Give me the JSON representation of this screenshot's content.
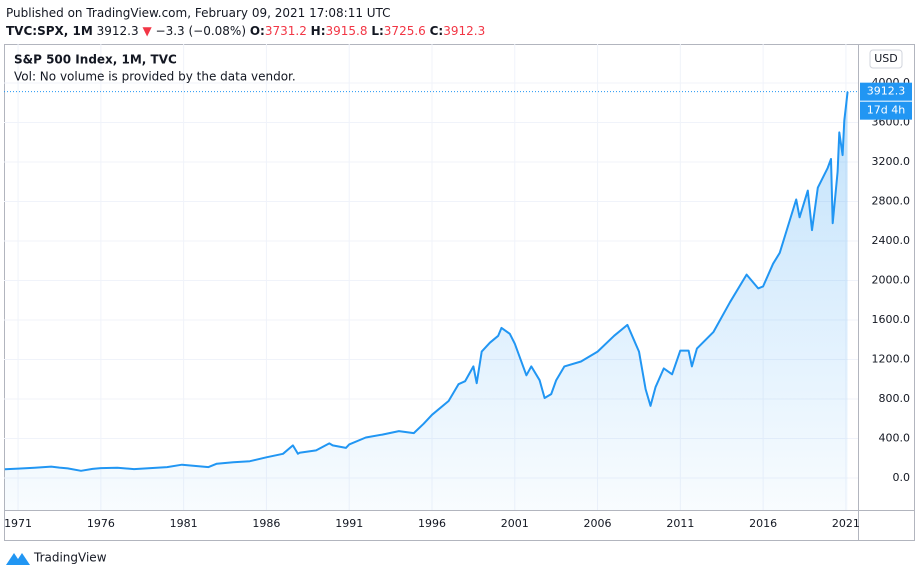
{
  "header": {
    "published": "Published on TradingView.com, February 09, 2021 17:08:11 UTC",
    "symbol": "TVC:SPX, 1M",
    "last": "3912.3",
    "arrow": "▼",
    "change": "−3.3 (−0.08%)",
    "o_label": "O:",
    "o": "3731.2",
    "h_label": "H:",
    "h": "3915.8",
    "l_label": "L:",
    "l": "3725.6",
    "c_label": "C:",
    "c": "3912.3"
  },
  "footer": {
    "brand": "TradingView"
  },
  "chart_data": {
    "type": "area",
    "title": "S&P 500 Index, 1M, TVC",
    "annotation": "Vol: No volume is provided by the data vendor.",
    "currency": "USD",
    "countdown": "17d 4h",
    "x": [
      1970.2,
      1971,
      1972,
      1973,
      1973.5,
      1974,
      1974.8,
      1975.5,
      1976,
      1977,
      1978,
      1979,
      1980,
      1980.9,
      1982.5,
      1983,
      1984,
      1985,
      1986,
      1987,
      1987.6,
      1987.9,
      1988,
      1989,
      1989.8,
      1990,
      1990.8,
      1991,
      1992,
      1993,
      1994,
      1994.9,
      1995.5,
      1996,
      1997,
      1997.6,
      1998,
      1998.5,
      1998.7,
      1999,
      1999.5,
      2000,
      2000.2,
      2000.7,
      2001,
      2001.7,
      2002,
      2002.5,
      2002.8,
      2003.2,
      2003.5,
      2004,
      2005,
      2006,
      2007,
      2007.8,
      2008.5,
      2008.9,
      2009.2,
      2009.5,
      2010,
      2010.5,
      2011,
      2011.5,
      2011.7,
      2012,
      2013,
      2014,
      2015,
      2015.7,
      2016,
      2016.6,
      2017,
      2018,
      2018.2,
      2018.7,
      2018.95,
      2019.3,
      2019.9,
      2020.1,
      2020.2,
      2020.5,
      2020.6,
      2020.8,
      2020.9,
      2021,
      2021.1
    ],
    "series": [
      {
        "name": "S&P 500 Index",
        "color": "#2196f3",
        "values": [
          89,
          95,
          104,
          116,
          105,
          97,
          73,
          92,
          100,
          104,
          90,
          100,
          110,
          135,
          110,
          145,
          160,
          170,
          210,
          245,
          330,
          245,
          255,
          280,
          350,
          330,
          305,
          340,
          410,
          440,
          475,
          455,
          550,
          640,
          780,
          950,
          980,
          1130,
          960,
          1280,
          1370,
          1440,
          1520,
          1460,
          1360,
          1040,
          1130,
          990,
          810,
          850,
          990,
          1130,
          1180,
          1280,
          1440,
          1550,
          1280,
          900,
          730,
          920,
          1110,
          1050,
          1290,
          1290,
          1130,
          1310,
          1480,
          1780,
          2060,
          1920,
          1940,
          2170,
          2280,
          2820,
          2640,
          2910,
          2510,
          2940,
          3140,
          3230,
          2580,
          3100,
          3500,
          3270,
          3620,
          3760,
          3912.3
        ]
      }
    ],
    "xlim": [
      1970.15,
      2021.73
    ],
    "ylim": [
      -324,
      4395
    ],
    "xticks": [
      1971,
      1976,
      1981,
      1986,
      1991,
      1996,
      2001,
      2006,
      2011,
      2016,
      2021
    ],
    "yticks": [
      {
        "value": 0,
        "label": "0.0"
      },
      {
        "value": 400,
        "label": "400.0"
      },
      {
        "value": 800,
        "label": "800.0"
      },
      {
        "value": 1200,
        "label": "1200.0"
      },
      {
        "value": 1600,
        "label": "1600.0"
      },
      {
        "value": 2000,
        "label": "2000.0"
      },
      {
        "value": 2400,
        "label": "2400.0"
      },
      {
        "value": 2800,
        "label": "2800.0"
      },
      {
        "value": 3200,
        "label": "3200.0"
      },
      {
        "value": 3600,
        "label": "3600.0"
      },
      {
        "value": 4000,
        "label": "4000.0"
      }
    ],
    "grid": true
  }
}
